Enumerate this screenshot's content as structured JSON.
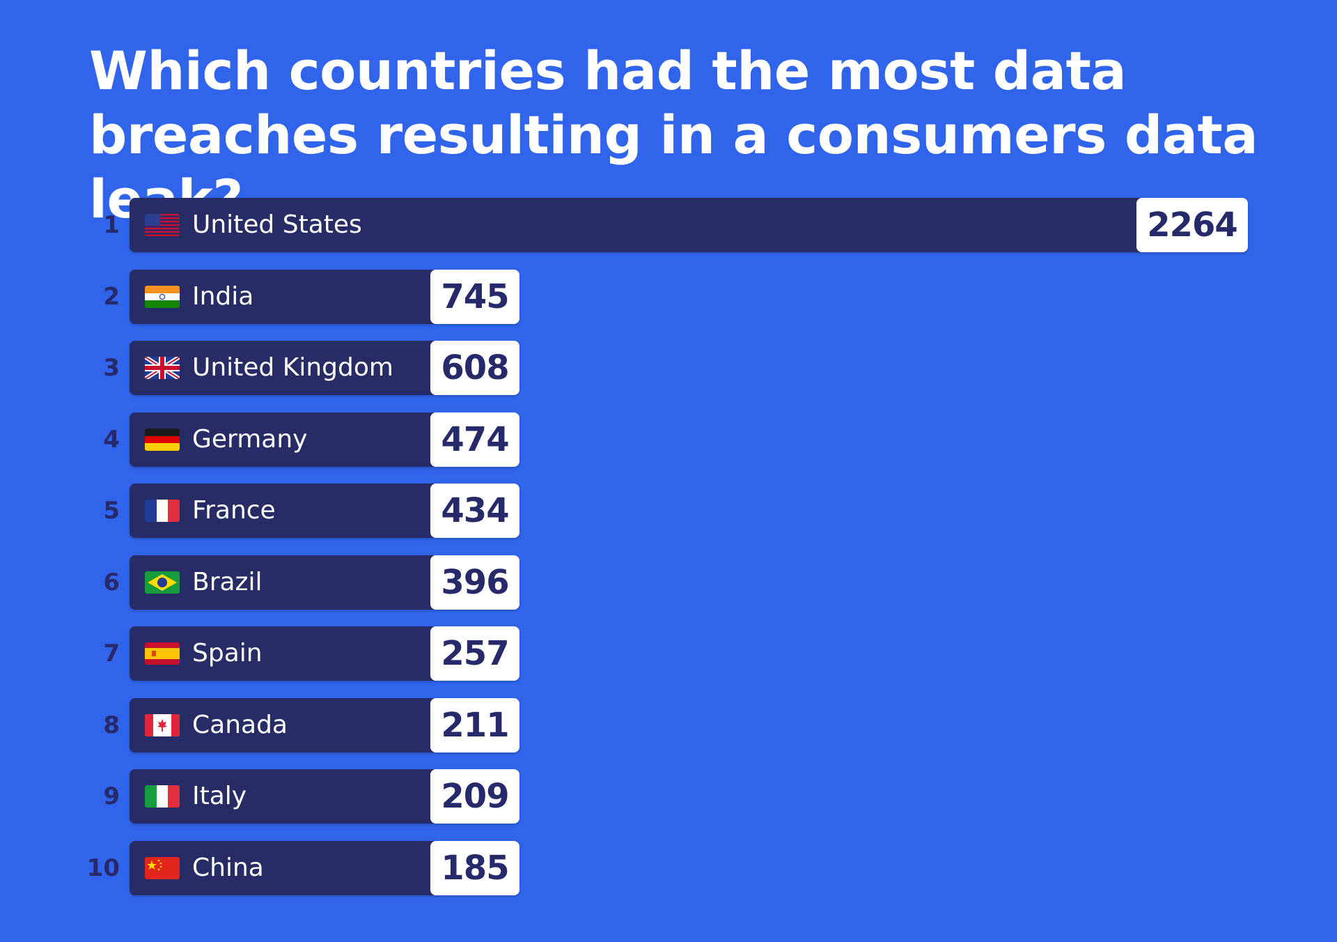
{
  "chart_data": {
    "type": "bar",
    "orientation": "horizontal",
    "title": "Which countries had the most data breaches resulting in a consumers data leak?",
    "bar_color": "#272c66",
    "background_color": "#3064ea",
    "value_box_color": "#ffffff",
    "grid": false,
    "categories": [
      "United States",
      "India",
      "United Kingdom",
      "Germany",
      "France",
      "Brazil",
      "Spain",
      "Canada",
      "Italy",
      "China"
    ],
    "ranks": [
      "1",
      "2",
      "3",
      "4",
      "5",
      "6",
      "7",
      "8",
      "9",
      "10"
    ],
    "values": [
      2264,
      745,
      608,
      474,
      434,
      396,
      257,
      211,
      209,
      185
    ],
    "flag_icons": [
      "us-flag-icon",
      "india-flag-icon",
      "uk-flag-icon",
      "germany-flag-icon",
      "france-flag-icon",
      "brazil-flag-icon",
      "spain-flag-icon",
      "canada-flag-icon",
      "italy-flag-icon",
      "china-flag-icon"
    ]
  }
}
